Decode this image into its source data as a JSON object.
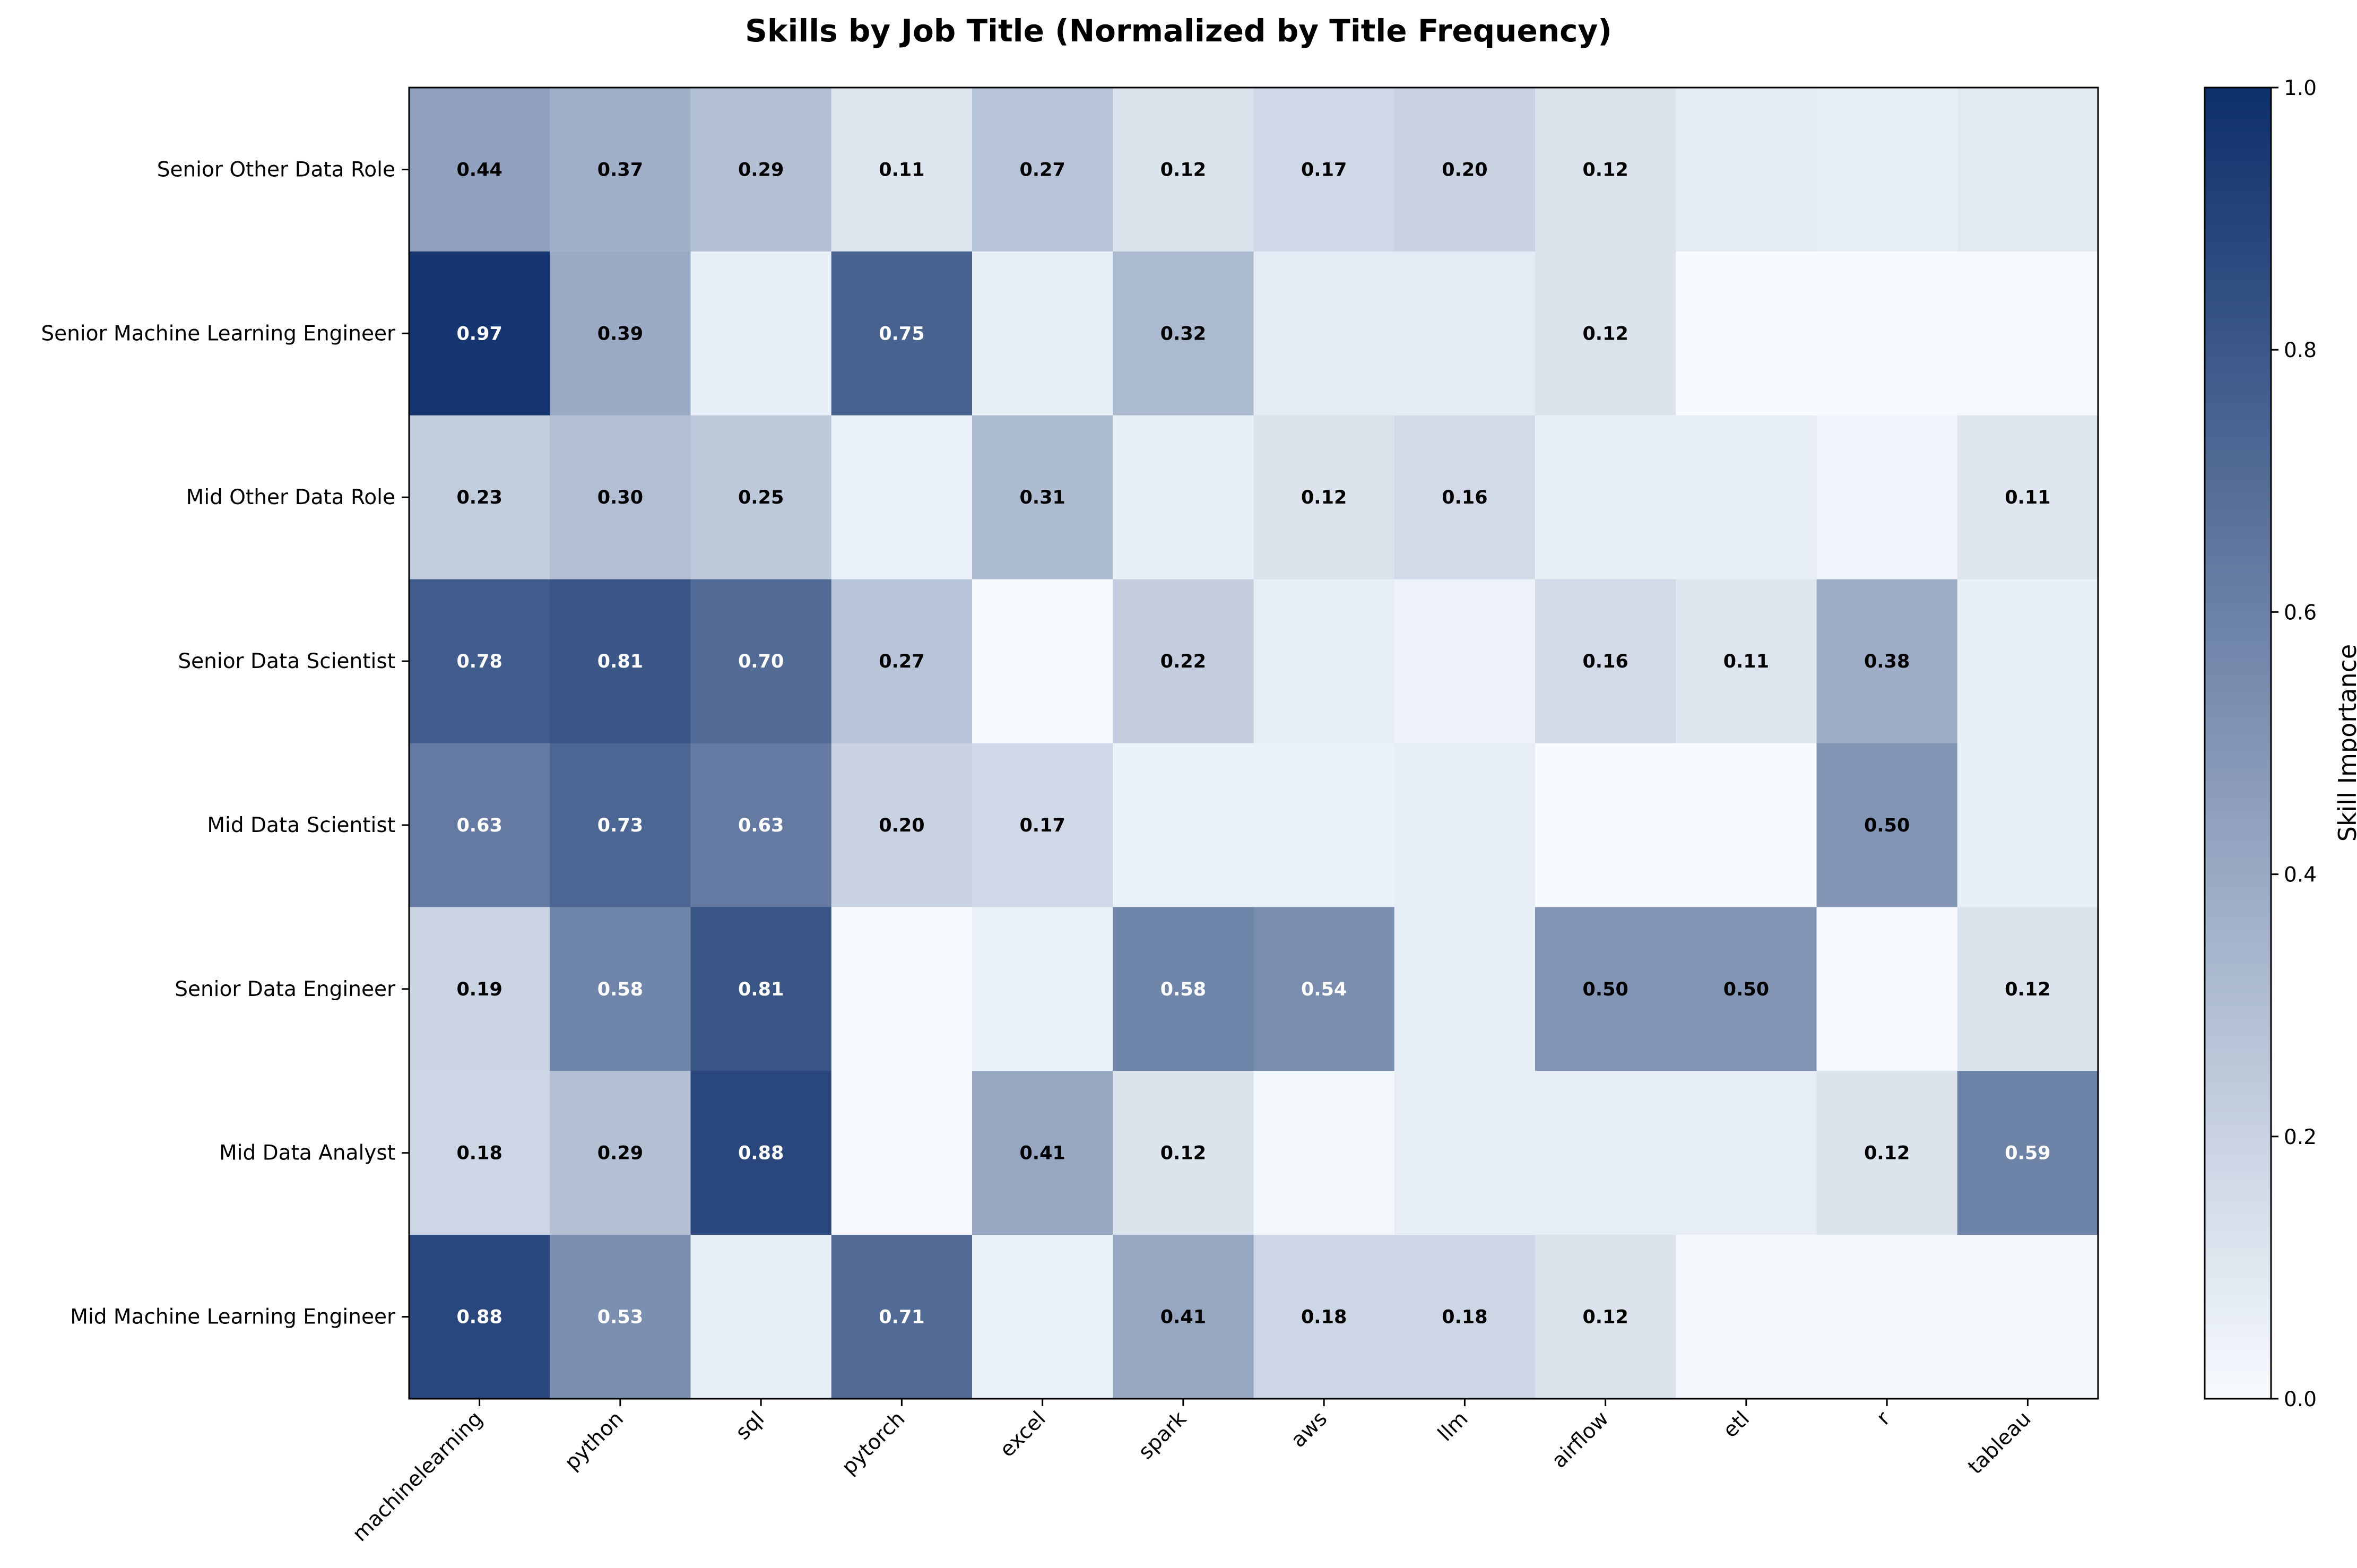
{
  "chart_data": {
    "type": "heatmap",
    "title": "Skills by Job Title (Normalized by Title Frequency)",
    "xlabel": "",
    "ylabel": "",
    "colorbar_label": "Skill Importance",
    "vmin": 0.0,
    "vmax": 1.0,
    "colorbar_ticks": [
      "0.0",
      "0.2",
      "0.4",
      "0.6",
      "0.8",
      "1.0"
    ],
    "colorbar_tick_values": [
      0.0,
      0.2,
      0.4,
      0.6,
      0.8,
      1.0
    ],
    "annotation_threshold": 0.1,
    "x_categories": [
      "machinelearning",
      "python",
      "sql",
      "pytorch",
      "excel",
      "spark",
      "aws",
      "llm",
      "airflow",
      "etl",
      "r",
      "tableau"
    ],
    "y_categories": [
      "Senior Other Data Role",
      "Senior Machine Learning Engineer",
      "Mid Other Data Role",
      "Senior Data Scientist",
      "Mid Data Scientist",
      "Senior Data Engineer",
      "Mid Data Analyst",
      "Mid Machine Learning Engineer"
    ],
    "values": [
      [
        0.44,
        0.37,
        0.29,
        0.11,
        0.27,
        0.12,
        0.17,
        0.2,
        0.12,
        0.08,
        0.06,
        0.09
      ],
      [
        0.97,
        0.39,
        0.06,
        0.75,
        0.06,
        0.32,
        0.08,
        0.08,
        0.12,
        0.0,
        0.0,
        0.01
      ],
      [
        0.23,
        0.3,
        0.25,
        0.05,
        0.31,
        0.06,
        0.12,
        0.16,
        0.06,
        0.07,
        0.03,
        0.11
      ],
      [
        0.78,
        0.81,
        0.7,
        0.27,
        0.0,
        0.22,
        0.07,
        0.04,
        0.16,
        0.11,
        0.38,
        0.06
      ],
      [
        0.63,
        0.73,
        0.63,
        0.2,
        0.17,
        0.05,
        0.05,
        0.07,
        0.0,
        0.0,
        0.5,
        0.06
      ],
      [
        0.19,
        0.58,
        0.81,
        0.01,
        0.05,
        0.58,
        0.54,
        0.06,
        0.5,
        0.5,
        0.01,
        0.12
      ],
      [
        0.18,
        0.29,
        0.88,
        0.01,
        0.41,
        0.12,
        0.02,
        0.07,
        0.07,
        0.07,
        0.12,
        0.59
      ],
      [
        0.88,
        0.53,
        0.06,
        0.71,
        0.05,
        0.41,
        0.18,
        0.18,
        0.12,
        0.02,
        0.02,
        0.02
      ]
    ],
    "colormap": [
      "#f7fbff",
      "#0d2f6b"
    ]
  }
}
